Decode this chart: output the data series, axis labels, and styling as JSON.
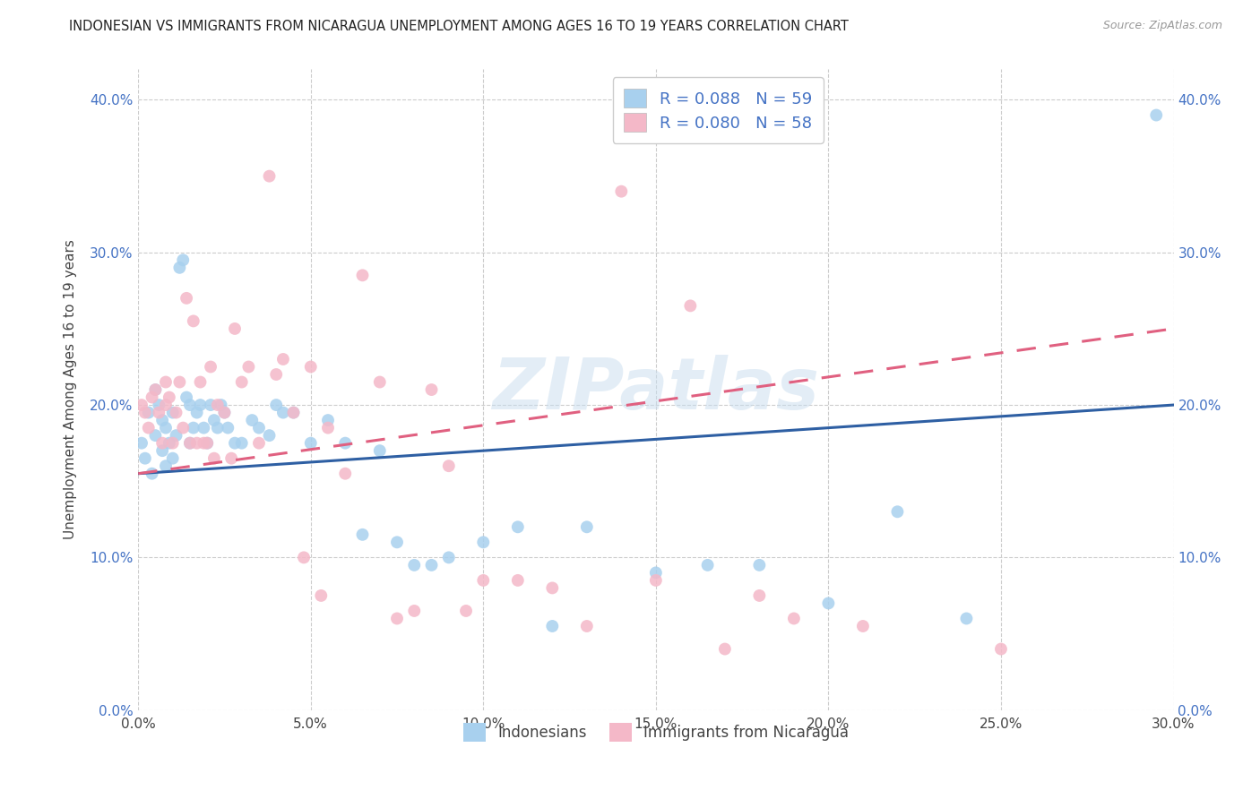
{
  "title": "INDONESIAN VS IMMIGRANTS FROM NICARAGUA UNEMPLOYMENT AMONG AGES 16 TO 19 YEARS CORRELATION CHART",
  "source": "Source: ZipAtlas.com",
  "ylabel": "Unemployment Among Ages 16 to 19 years",
  "xlim": [
    0.0,
    0.3
  ],
  "ylim": [
    0.0,
    0.42
  ],
  "legend_label1": "Indonesians",
  "legend_label2": "Immigrants from Nicaragua",
  "r1": "0.088",
  "n1": "59",
  "r2": "0.080",
  "n2": "58",
  "color_blue": "#A8D0EE",
  "color_pink": "#F4B8C8",
  "line_color_blue": "#2E5FA3",
  "line_color_pink": "#E06080",
  "watermark": "ZIPatlas",
  "blue_x": [
    0.001,
    0.002,
    0.003,
    0.004,
    0.005,
    0.005,
    0.006,
    0.007,
    0.007,
    0.008,
    0.008,
    0.009,
    0.01,
    0.01,
    0.011,
    0.012,
    0.013,
    0.014,
    0.015,
    0.015,
    0.016,
    0.017,
    0.018,
    0.019,
    0.02,
    0.021,
    0.022,
    0.023,
    0.024,
    0.025,
    0.026,
    0.028,
    0.03,
    0.033,
    0.035,
    0.038,
    0.04,
    0.042,
    0.045,
    0.05,
    0.055,
    0.06,
    0.065,
    0.07,
    0.075,
    0.08,
    0.085,
    0.09,
    0.1,
    0.11,
    0.12,
    0.13,
    0.15,
    0.165,
    0.18,
    0.2,
    0.22,
    0.24,
    0.295
  ],
  "blue_y": [
    0.175,
    0.165,
    0.195,
    0.155,
    0.18,
    0.21,
    0.2,
    0.19,
    0.17,
    0.185,
    0.16,
    0.175,
    0.165,
    0.195,
    0.18,
    0.29,
    0.295,
    0.205,
    0.175,
    0.2,
    0.185,
    0.195,
    0.2,
    0.185,
    0.175,
    0.2,
    0.19,
    0.185,
    0.2,
    0.195,
    0.185,
    0.175,
    0.175,
    0.19,
    0.185,
    0.18,
    0.2,
    0.195,
    0.195,
    0.175,
    0.19,
    0.175,
    0.115,
    0.17,
    0.11,
    0.095,
    0.095,
    0.1,
    0.11,
    0.12,
    0.055,
    0.12,
    0.09,
    0.095,
    0.095,
    0.07,
    0.13,
    0.06,
    0.39
  ],
  "pink_x": [
    0.001,
    0.002,
    0.003,
    0.004,
    0.005,
    0.006,
    0.007,
    0.008,
    0.008,
    0.009,
    0.01,
    0.011,
    0.012,
    0.013,
    0.014,
    0.015,
    0.016,
    0.017,
    0.018,
    0.019,
    0.02,
    0.021,
    0.022,
    0.023,
    0.025,
    0.027,
    0.028,
    0.03,
    0.032,
    0.035,
    0.038,
    0.04,
    0.042,
    0.045,
    0.048,
    0.05,
    0.053,
    0.055,
    0.06,
    0.065,
    0.07,
    0.075,
    0.08,
    0.085,
    0.09,
    0.095,
    0.1,
    0.11,
    0.12,
    0.13,
    0.14,
    0.15,
    0.16,
    0.17,
    0.18,
    0.19,
    0.21,
    0.25
  ],
  "pink_y": [
    0.2,
    0.195,
    0.185,
    0.205,
    0.21,
    0.195,
    0.175,
    0.2,
    0.215,
    0.205,
    0.175,
    0.195,
    0.215,
    0.185,
    0.27,
    0.175,
    0.255,
    0.175,
    0.215,
    0.175,
    0.175,
    0.225,
    0.165,
    0.2,
    0.195,
    0.165,
    0.25,
    0.215,
    0.225,
    0.175,
    0.35,
    0.22,
    0.23,
    0.195,
    0.1,
    0.225,
    0.075,
    0.185,
    0.155,
    0.285,
    0.215,
    0.06,
    0.065,
    0.21,
    0.16,
    0.065,
    0.085,
    0.085,
    0.08,
    0.055,
    0.34,
    0.085,
    0.265,
    0.04,
    0.075,
    0.06,
    0.055,
    0.04
  ]
}
